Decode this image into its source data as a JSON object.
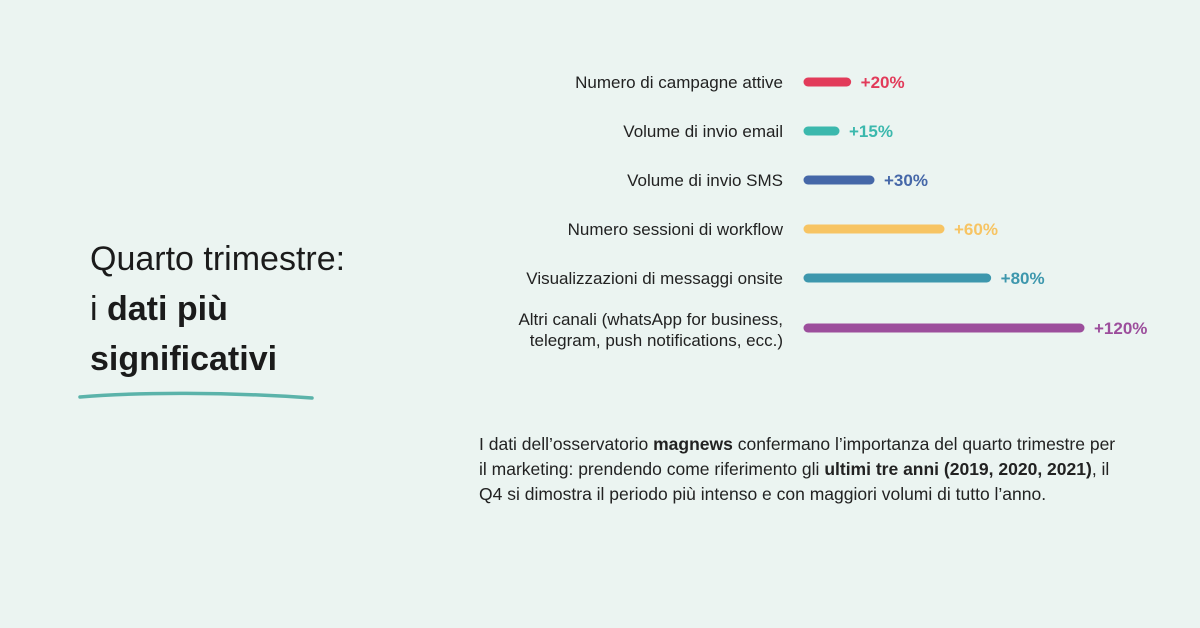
{
  "headline": {
    "line1": "Quarto trimestre:",
    "line2_prefix": "i ",
    "line2_bold": "dati più",
    "line3_bold": "significativi"
  },
  "colors": {
    "background": "#ebf4f1",
    "underline": "#5bb3aa"
  },
  "chart_data": {
    "type": "bar",
    "orientation": "horizontal",
    "title": "",
    "xlabel": "",
    "ylabel": "",
    "unit": "%",
    "xlim": [
      0,
      120
    ],
    "categories": [
      [
        "Numero di campagne attive"
      ],
      [
        "Volume di invio email"
      ],
      [
        "Volume di invio SMS"
      ],
      [
        "Numero sessioni di workflow"
      ],
      [
        "Visualizzazioni di messaggi onsite"
      ],
      [
        "Altri canali (whatsApp for business,",
        "telegram, push notifications, ecc.)"
      ]
    ],
    "values": [
      20,
      15,
      30,
      60,
      80,
      120
    ],
    "value_labels": [
      "+20%",
      "+15%",
      "+30%",
      "+60%",
      "+80%",
      "+120%"
    ],
    "bar_colors": [
      "#e23b5a",
      "#3bb8ad",
      "#4567a8",
      "#f7c463",
      "#3d97ad",
      "#9c4e9c"
    ]
  },
  "note": {
    "p1": "I dati dell’osservatorio ",
    "b1": "magnews",
    "p2": " confermano l’importanza del quarto trimestre per il marketing: prendendo come riferimento gli ",
    "b2": "ultimi tre anni (2019, 2020, 2021)",
    "p3": ", il Q4 si dimostra il periodo più intenso e con maggiori volumi di tutto l’anno."
  }
}
